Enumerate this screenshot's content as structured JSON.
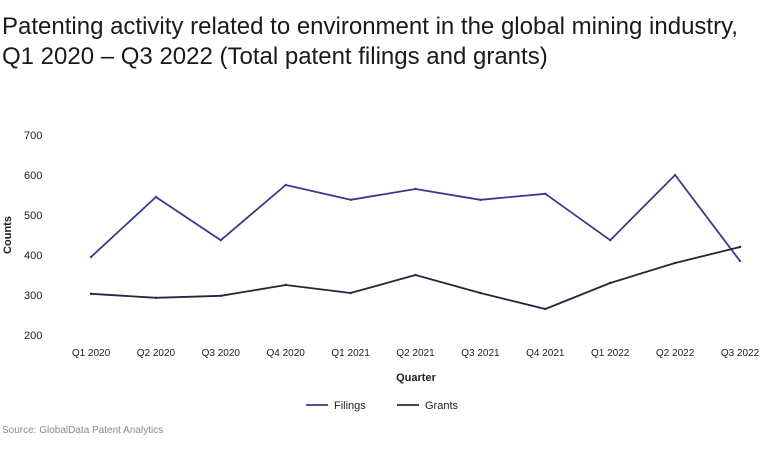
{
  "title": "Patenting activity related to environment in the global mining industry, Q1 2020 – Q3 2022 (Total patent filings and grants)",
  "source": "Source: GlobalData Patent Analytics",
  "colors": {
    "filings": "#3a3a8c",
    "grants": "#27243f",
    "axis_text": "#222222"
  },
  "chart_data": {
    "type": "line",
    "categories": [
      "Q1 2020",
      "Q2 2020",
      "Q3 2020",
      "Q4 2020",
      "Q1 2021",
      "Q2 2021",
      "Q3 2021",
      "Q4 2021",
      "Q1 2022",
      "Q2 2022",
      "Q3 2022"
    ],
    "series": [
      {
        "name": "Filings",
        "values": [
          395,
          545,
          437,
          575,
          538,
          565,
          538,
          553,
          437,
          600,
          385
        ]
      },
      {
        "name": "Grants",
        "values": [
          303,
          293,
          298,
          325,
          305,
          350,
          305,
          265,
          330,
          380,
          420
        ]
      }
    ],
    "xlabel": "Quarter",
    "ylabel": "Counts",
    "ylim": [
      200,
      700
    ],
    "yticks": [
      200,
      300,
      400,
      500,
      600,
      700
    ],
    "grid": false,
    "legend": "bottom-center"
  }
}
